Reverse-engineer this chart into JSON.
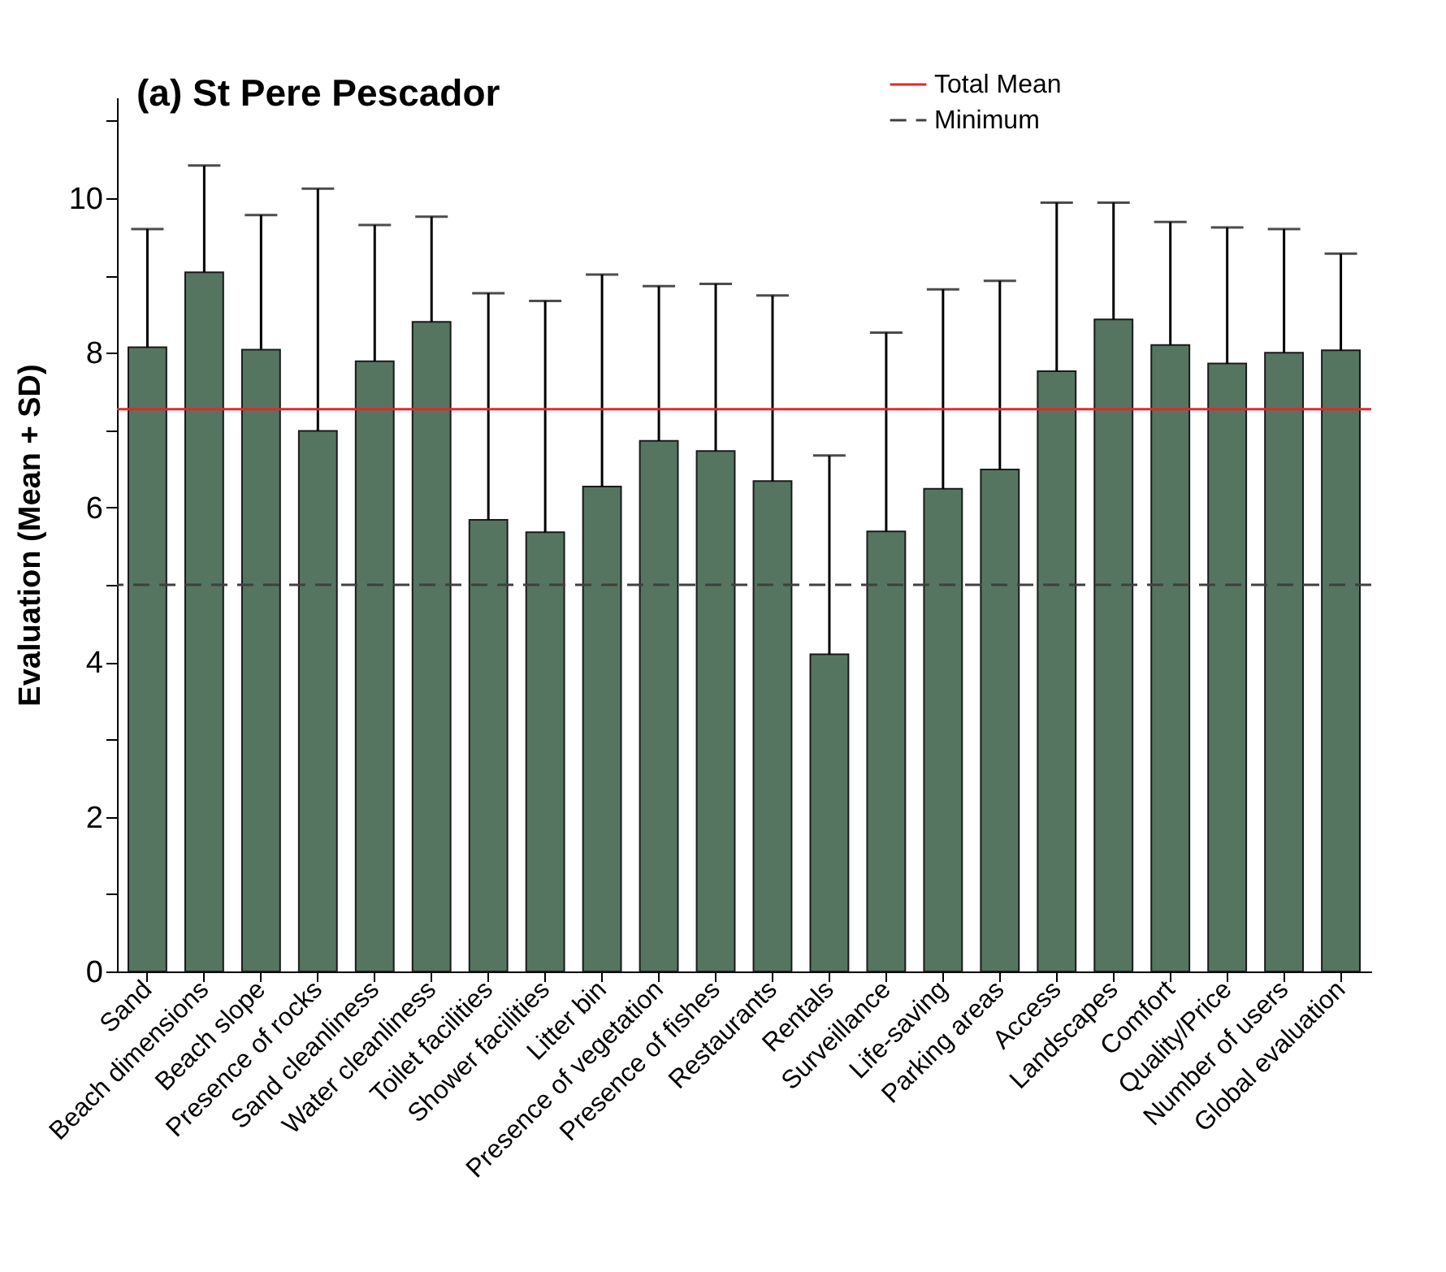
{
  "chart_data": {
    "type": "bar",
    "title": "(a)  St Pere Pescador",
    "ylabel": "Evaluation (Mean + SD)",
    "categories": [
      "Sand",
      "Beach dimensions",
      "Beach slope",
      "Presence of rocks",
      "Sand cleanliness",
      "Water cleanliness",
      "Toilet facilities",
      "Shower facilities",
      "Litter bin",
      "Presence of vegetation",
      "Presence of fishes",
      "Restaurants",
      "Rentals",
      "Surveillance",
      "Life-saving",
      "Parking areas",
      "Access",
      "Landscapes",
      "Comfort",
      "Quality/Price",
      "Number of users",
      "Global evaluation"
    ],
    "values": [
      8.07,
      9.04,
      8.04,
      6.99,
      7.89,
      8.4,
      5.84,
      5.68,
      6.27,
      6.86,
      6.73,
      6.34,
      4.1,
      5.69,
      6.24,
      6.49,
      7.76,
      8.43,
      8.1,
      7.86,
      8.0,
      8.03
    ],
    "errors": [
      [
        8.07,
        9.6
      ],
      [
        9.04,
        10.42
      ],
      [
        8.04,
        9.78
      ],
      [
        6.99,
        10.12
      ],
      [
        7.89,
        9.65
      ],
      [
        8.4,
        9.76
      ],
      [
        5.84,
        8.77
      ],
      [
        5.68,
        8.67
      ],
      [
        6.27,
        9.01
      ],
      [
        6.86,
        8.86
      ],
      [
        6.73,
        8.89
      ],
      [
        6.34,
        8.74
      ],
      [
        4.1,
        6.67
      ],
      [
        5.69,
        8.26
      ],
      [
        6.24,
        8.82
      ],
      [
        6.49,
        8.93
      ],
      [
        7.76,
        9.94
      ],
      [
        8.43,
        9.94
      ],
      [
        8.1,
        9.69
      ],
      [
        7.86,
        9.62
      ],
      [
        8.0,
        9.6
      ],
      [
        8.03,
        9.28
      ]
    ],
    "color": "#557560",
    "ylim": [
      0,
      11.3
    ],
    "yticks": [
      0,
      {
        "value": 1,
        "label": null
      },
      2,
      {
        "value": 3,
        "label": null
      },
      4,
      {
        "value": 5,
        "label": null
      },
      6,
      {
        "value": 7,
        "label": null
      },
      8,
      {
        "value": 9,
        "label": null
      },
      10,
      {
        "value": 11,
        "label": null
      }
    ],
    "ref_lines": [
      {
        "axis": "y",
        "value": 7.27,
        "label": "Total Mean",
        "color": "#e8262b",
        "line_style": "solid"
      },
      {
        "axis": "y",
        "value": 5,
        "label": "Minimum",
        "color": "#404040",
        "line_style": "dashed"
      }
    ],
    "legend": "top",
    "grid": false
  }
}
